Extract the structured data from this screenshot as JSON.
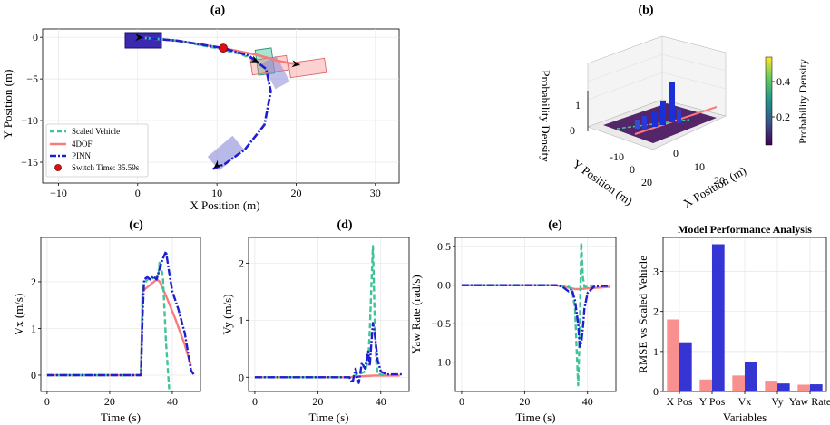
{
  "colors": {
    "scaled": "#3fc39b",
    "dof4": "#f77c7c",
    "pinn": "#1f1fcf",
    "switch": "#dd1111",
    "surface": "#44105a",
    "spike": "#1a2fd8"
  },
  "chart_data": [
    {
      "id": "a",
      "type": "line",
      "title": "(a)",
      "xlabel": "X Position (m)",
      "ylabel": "Y Position (m)",
      "xlim": [
        -12,
        33
      ],
      "ylim": [
        -17.5,
        1
      ],
      "xticks": [
        -10,
        0,
        10,
        20,
        30
      ],
      "yticks": [
        0,
        -5,
        -10,
        -15
      ],
      "legend": {
        "placement": "lower-left",
        "entries": [
          "Scaled Vehicle",
          "4DOF",
          "PINN",
          "Switch Time: 35.59s"
        ]
      },
      "series": [
        {
          "name": "Scaled Vehicle",
          "style": "dashed",
          "x": [
            0,
            5,
            10,
            13,
            14.5,
            15.5
          ],
          "y": [
            0,
            -0.4,
            -1.3,
            -2.0,
            -2.6,
            -3.3
          ]
        },
        {
          "name": "4DOF",
          "style": "solid",
          "x": [
            0,
            5,
            10.8,
            15,
            18,
            20.5
          ],
          "y": [
            0,
            -0.4,
            -1.3,
            -2.1,
            -2.9,
            -3.3
          ]
        },
        {
          "name": "PINN",
          "style": "dashdot",
          "x": [
            0,
            5,
            10.8,
            14,
            16.2,
            16.8,
            16,
            13.5,
            11,
            9.5
          ],
          "y": [
            0,
            -0.4,
            -1.3,
            -2.2,
            -3.8,
            -6.5,
            -10.5,
            -13.5,
            -15.2,
            -15.8
          ]
        }
      ],
      "switch_point": {
        "x": 10.8,
        "y": -1.3
      }
    },
    {
      "id": "b",
      "type": "heatmap",
      "title": "(b)",
      "xlabel": "X Position (m)",
      "ylabel": "Y Position (m)",
      "zlabel": "Probability Density",
      "xticks": [
        0,
        10,
        20
      ],
      "yticks": [
        -10,
        0,
        20
      ],
      "zticks": [
        0,
        1
      ],
      "colorbar": {
        "label": "Probability Density",
        "ticks": [
          0.2,
          0.4
        ]
      }
    },
    {
      "id": "c",
      "type": "line",
      "title": "(c)",
      "xlabel": "Time (s)",
      "ylabel": "Vx (m/s)",
      "xlim": [
        -2,
        49
      ],
      "ylim": [
        -0.35,
        2.95
      ],
      "xticks": [
        0,
        20,
        40
      ],
      "yticks": [
        0,
        1,
        2
      ],
      "series": [
        {
          "name": "Scaled Vehicle",
          "style": "dashed",
          "x": [
            0,
            30,
            30.5,
            32,
            35.5,
            36,
            37,
            38,
            39
          ],
          "y": [
            0,
            0,
            1.9,
            2.05,
            2.1,
            2.45,
            2.1,
            0.7,
            -0.3
          ]
        },
        {
          "name": "4DOF",
          "style": "solid",
          "x": [
            0,
            30,
            30.5,
            35,
            36,
            38,
            41,
            44,
            46
          ],
          "y": [
            0,
            0,
            1.8,
            2.05,
            2.0,
            1.7,
            1.2,
            0.65,
            0.2
          ]
        },
        {
          "name": "PINN",
          "style": "dashdot",
          "x": [
            0,
            30,
            30.5,
            31,
            32,
            33,
            34,
            35,
            36,
            37,
            38,
            39,
            40,
            42,
            44,
            46,
            47
          ],
          "y": [
            0,
            0,
            1.3,
            2.05,
            2.1,
            2.05,
            2.12,
            2.05,
            2.3,
            2.5,
            2.65,
            2.2,
            1.8,
            1.4,
            0.9,
            0.1,
            0
          ]
        }
      ]
    },
    {
      "id": "d",
      "type": "line",
      "title": "(d)",
      "xlabel": "Time (s)",
      "ylabel": "Vy (m/s)",
      "xlim": [
        -2,
        49
      ],
      "ylim": [
        -0.25,
        2.45
      ],
      "xticks": [
        0,
        20,
        40
      ],
      "yticks": [
        0,
        1,
        2
      ],
      "series": [
        {
          "name": "Scaled Vehicle",
          "style": "dashed",
          "x": [
            0,
            30,
            33,
            35,
            36,
            36.5,
            37,
            37.5,
            38,
            38.5,
            39,
            40,
            41
          ],
          "y": [
            0,
            0,
            0.05,
            0.1,
            0.3,
            0.8,
            1.6,
            2.3,
            1.2,
            0.3,
            0.05,
            0.05,
            0.03
          ]
        },
        {
          "name": "4DOF",
          "style": "solid",
          "x": [
            0,
            30,
            35,
            38,
            40,
            44,
            46
          ],
          "y": [
            0,
            0,
            0.02,
            0.03,
            0.03,
            0.03,
            0.03
          ]
        },
        {
          "name": "PINN",
          "style": "dashdot",
          "x": [
            0,
            30,
            31,
            32,
            33,
            34,
            35,
            36,
            36.5,
            37,
            37.5,
            38,
            38.5,
            39,
            40,
            42,
            44,
            46,
            47
          ],
          "y": [
            0,
            0,
            -0.1,
            0.15,
            -0.1,
            0.25,
            0.15,
            0.45,
            0.2,
            0.6,
            0.95,
            0.8,
            0.55,
            0.3,
            0.1,
            0.05,
            0.05,
            0.05,
            0.05
          ]
        }
      ]
    },
    {
      "id": "e",
      "type": "line",
      "title": "(e)",
      "xlabel": "Time (s)",
      "ylabel": "Yaw Rate (rad/s)",
      "xlim": [
        -2,
        49
      ],
      "ylim": [
        -1.38,
        0.62
      ],
      "xticks": [
        0,
        20,
        40
      ],
      "yticks": [
        0.5,
        0.0,
        -0.5,
        -1.0
      ],
      "series": [
        {
          "name": "Scaled Vehicle",
          "style": "dashed",
          "x": [
            0,
            30,
            34,
            35,
            36,
            36.5,
            37,
            37.5,
            38,
            38.5,
            39,
            40,
            42
          ],
          "y": [
            0,
            0,
            -0.02,
            -0.05,
            -0.3,
            -0.8,
            -1.3,
            -0.6,
            0.55,
            0.1,
            -0.02,
            -0.02,
            -0.01
          ]
        },
        {
          "name": "4DOF",
          "style": "solid",
          "x": [
            0,
            30,
            34,
            36,
            38,
            40,
            44,
            47
          ],
          "y": [
            0,
            0,
            -0.03,
            -0.05,
            -0.05,
            -0.04,
            -0.03,
            -0.02
          ]
        },
        {
          "name": "PINN",
          "style": "dashdot",
          "x": [
            0,
            30,
            32,
            34,
            35,
            36,
            37,
            37.5,
            38,
            38.5,
            39,
            40,
            42,
            44,
            46,
            47
          ],
          "y": [
            0,
            0,
            -0.02,
            -0.08,
            -0.05,
            -0.2,
            -0.5,
            -0.8,
            -0.75,
            -0.55,
            -0.3,
            -0.1,
            -0.02,
            -0.01,
            -0.01,
            -0.01
          ]
        }
      ]
    },
    {
      "id": "f",
      "type": "bar",
      "title": "Model Performance Analysis",
      "xlabel": "Variables",
      "ylabel": "RMSE vs Scaled Vehicle",
      "ylim": [
        0,
        3.85
      ],
      "yticks": [
        0,
        1,
        2,
        3
      ],
      "categories": [
        "X Pos",
        "Y Pos",
        "Vx",
        "Vy",
        "Yaw Rate"
      ],
      "series": [
        {
          "name": "4DOF",
          "values": [
            1.8,
            0.3,
            0.4,
            0.27,
            0.17
          ]
        },
        {
          "name": "PINN",
          "values": [
            1.23,
            3.68,
            0.74,
            0.2,
            0.18
          ]
        }
      ]
    }
  ]
}
